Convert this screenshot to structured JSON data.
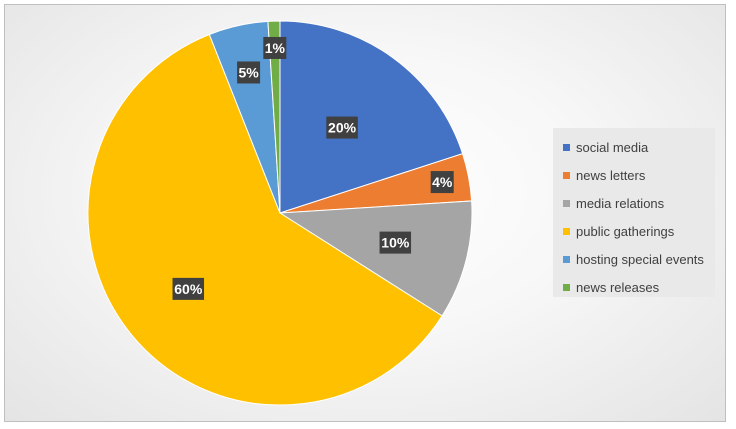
{
  "chart_data": {
    "type": "pie",
    "categories": [
      "social media",
      "news letters",
      "media relations",
      "public gatherings",
      "hosting special events",
      "news releases"
    ],
    "values": [
      20,
      4,
      10,
      60,
      5,
      1
    ],
    "labels": [
      "20%",
      "4%",
      "10%",
      "60%",
      "5%",
      "1%"
    ],
    "colors": [
      "#4472C4",
      "#ED7D31",
      "#A5A5A5",
      "#FFC000",
      "#5B9BD5",
      "#70AD47"
    ],
    "title": "",
    "legend_position": "right",
    "start_angle": "12 o'clock",
    "direction": "clockwise"
  }
}
